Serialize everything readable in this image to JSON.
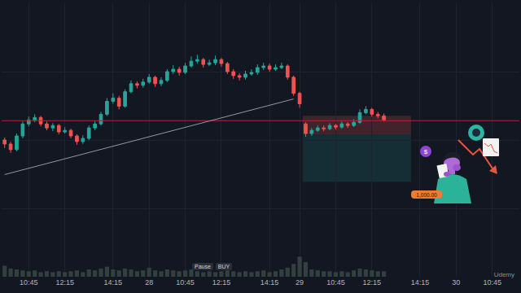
{
  "chart_data": {
    "type": "candlestick",
    "categories": [
      null,
      null,
      null,
      null,
      "10:45",
      null,
      null,
      null,
      null,
      null,
      "12:15",
      null,
      null,
      null,
      null,
      null,
      null,
      null,
      "14:15",
      null,
      null,
      null,
      null,
      null,
      "28",
      null,
      null,
      null,
      null,
      null,
      "10:45",
      null,
      null,
      null,
      null,
      null,
      "12:15",
      null,
      null,
      null,
      null,
      null,
      null,
      null,
      "14:15",
      null,
      null,
      null,
      null,
      "29",
      null,
      null,
      null,
      null,
      null,
      "10:45",
      null,
      null,
      null,
      null,
      null,
      "12:15",
      null,
      null,
      null,
      null,
      null,
      null,
      null,
      "14:15",
      null,
      null,
      null,
      null,
      null,
      "30",
      null,
      null,
      null,
      null,
      null,
      "10:45",
      null,
      null,
      null,
      null
    ],
    "open": [
      170,
      165,
      158,
      175,
      190,
      195,
      198,
      190,
      185,
      188,
      180,
      182,
      175,
      168,
      172,
      185,
      190,
      202,
      218,
      222,
      212,
      230,
      240,
      238,
      242,
      248,
      240,
      244,
      255,
      258,
      254,
      262,
      268,
      270,
      264,
      266,
      270,
      265,
      255,
      250,
      248,
      252,
      254,
      260,
      262,
      258,
      260,
      262,
      248,
      228,
      190,
      178,
      182,
      185,
      184,
      188,
      186,
      190,
      188,
      192,
      204,
      208,
      202,
      200,
      null,
      null,
      null,
      null,
      null,
      null,
      null,
      null,
      null,
      null,
      null,
      null,
      null,
      null,
      null,
      null,
      null,
      null,
      null,
      null,
      null,
      null
    ],
    "high": [
      173,
      168,
      178,
      193,
      199,
      202,
      200,
      193,
      191,
      190,
      186,
      184,
      177,
      176,
      188,
      194,
      205,
      222,
      228,
      225,
      233,
      244,
      243,
      246,
      252,
      250,
      248,
      258,
      263,
      261,
      266,
      274,
      276,
      272,
      270,
      275,
      272,
      267,
      258,
      253,
      256,
      258,
      264,
      266,
      265,
      264,
      266,
      264,
      250,
      230,
      192,
      185,
      188,
      188,
      191,
      190,
      193,
      192,
      196,
      208,
      212,
      210,
      205,
      203,
      null,
      null,
      null,
      null,
      null,
      null,
      null,
      null,
      null,
      null,
      null,
      null,
      null,
      null,
      null,
      null,
      null,
      null,
      null,
      null,
      null,
      null
    ],
    "low": [
      160,
      154,
      156,
      172,
      187,
      192,
      187,
      182,
      181,
      177,
      178,
      172,
      164,
      165,
      170,
      182,
      188,
      200,
      215,
      208,
      210,
      228,
      234,
      235,
      240,
      236,
      237,
      242,
      252,
      250,
      252,
      260,
      265,
      260,
      262,
      263,
      261,
      252,
      246,
      244,
      245,
      250,
      251,
      257,
      255,
      256,
      258,
      245,
      225,
      210,
      174,
      175,
      180,
      181,
      182,
      183,
      184,
      185,
      186,
      190,
      202,
      199,
      197,
      193,
      null,
      null,
      null,
      null,
      null,
      null,
      null,
      null,
      null,
      null,
      null,
      null,
      null,
      null,
      null,
      null,
      null,
      null,
      null,
      null,
      null,
      null
    ],
    "close": [
      165,
      158,
      175,
      190,
      195,
      198,
      190,
      185,
      188,
      180,
      182,
      175,
      168,
      172,
      185,
      190,
      202,
      218,
      222,
      212,
      230,
      240,
      238,
      242,
      248,
      240,
      244,
      255,
      258,
      254,
      262,
      268,
      270,
      264,
      266,
      270,
      265,
      255,
      250,
      248,
      252,
      254,
      260,
      262,
      258,
      260,
      262,
      248,
      228,
      215,
      178,
      182,
      185,
      184,
      188,
      186,
      190,
      188,
      192,
      204,
      208,
      202,
      200,
      195,
      null,
      null,
      null,
      null,
      null,
      null,
      null,
      null,
      null,
      null,
      null,
      null,
      null,
      null,
      null,
      null,
      null,
      null,
      null,
      null,
      null,
      null
    ],
    "volume": {
      "type": "bar",
      "axis": "y2",
      "color": "#34403f",
      "values": [
        12,
        9,
        8,
        7,
        6,
        7,
        5,
        6,
        5,
        6,
        5,
        6,
        7,
        5,
        8,
        7,
        9,
        11,
        8,
        7,
        9,
        8,
        6,
        7,
        10,
        7,
        6,
        8,
        7,
        6,
        7,
        8,
        6,
        5,
        6,
        5,
        6,
        7,
        6,
        5,
        6,
        5,
        6,
        7,
        5,
        6,
        8,
        10,
        14,
        22,
        16,
        8,
        7,
        6,
        6,
        5,
        6,
        5,
        7,
        9,
        8,
        7,
        6,
        6,
        null,
        null,
        null,
        null,
        null,
        null,
        null,
        null,
        null,
        null,
        null,
        null,
        null,
        null,
        null,
        null,
        null,
        null,
        null,
        null,
        null,
        null
      ]
    },
    "ylim": [
      0,
      340
    ],
    "yticks": [
      0,
      85,
      170,
      255,
      340
    ],
    "y2lim": [
      0,
      300
    ],
    "grid": true,
    "tick_labels": "x",
    "level": 194,
    "trend_line": {
      "start_index": 0,
      "end_index": 48,
      "start": 127,
      "end": 221
    },
    "position": {
      "start_index": 49.5,
      "end_index": 67.5,
      "stop": 200,
      "entry": 177,
      "target": 118
    },
    "buttons": [
      "Pause",
      "BUY"
    ],
    "badge": "1,000.00",
    "icon": "$",
    "watermark": "Udemy"
  }
}
